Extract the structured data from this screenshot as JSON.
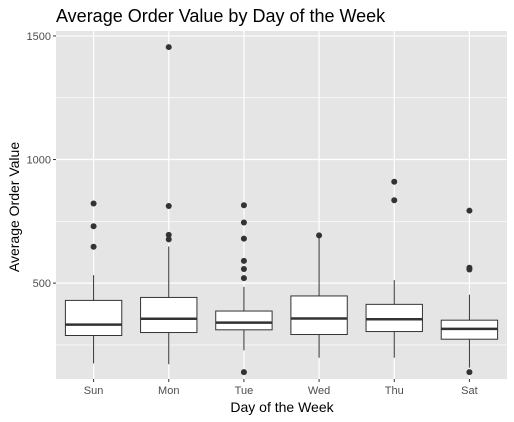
{
  "chart_data": {
    "type": "box",
    "title": "Average Order Value by Day of the Week",
    "xlabel": "Day of the Week",
    "ylabel": "Average Order Value",
    "categories": [
      "Sun",
      "Mon",
      "Tue",
      "Wed",
      "Thu",
      "Sat"
    ],
    "y_ticks": [
      500,
      1000,
      1500
    ],
    "y_tick_labels": [
      "500",
      "1000",
      "1500"
    ],
    "ylim": [
      112,
      1520
    ],
    "grid": true,
    "boxes": [
      {
        "category": "Sun",
        "whisker_low": 175,
        "q1": 288,
        "median": 332,
        "q3": 430,
        "whisker_high": 532,
        "outliers": [
          822,
          730,
          647
        ]
      },
      {
        "category": "Mon",
        "whisker_low": 172,
        "q1": 300,
        "median": 356,
        "q3": 442,
        "whisker_high": 648,
        "outliers": [
          1455,
          812,
          695,
          677
        ]
      },
      {
        "category": "Tue",
        "whisker_low": 228,
        "q1": 311,
        "median": 340,
        "q3": 387,
        "whisker_high": 485,
        "outliers": [
          815,
          745,
          680,
          590,
          557,
          520,
          140
        ]
      },
      {
        "category": "Wed",
        "whisker_low": 198,
        "q1": 292,
        "median": 357,
        "q3": 448,
        "whisker_high": 690,
        "outliers": [
          693
        ]
      },
      {
        "category": "Thu",
        "whisker_low": 198,
        "q1": 304,
        "median": 354,
        "q3": 414,
        "whisker_high": 512,
        "outliers": [
          910,
          835
        ]
      },
      {
        "category": "Sat",
        "whisker_low": 158,
        "q1": 273,
        "median": 315,
        "q3": 350,
        "whisker_high": 453,
        "outliers": [
          793,
          562,
          555,
          140
        ]
      }
    ],
    "colors": {
      "panel_background": "#e5e5e5",
      "gridline": "#ffffff",
      "box_fill": "#ffffff",
      "box_stroke": "#333333",
      "outlier": "#333333",
      "tick_label": "#4d4d4d"
    }
  }
}
